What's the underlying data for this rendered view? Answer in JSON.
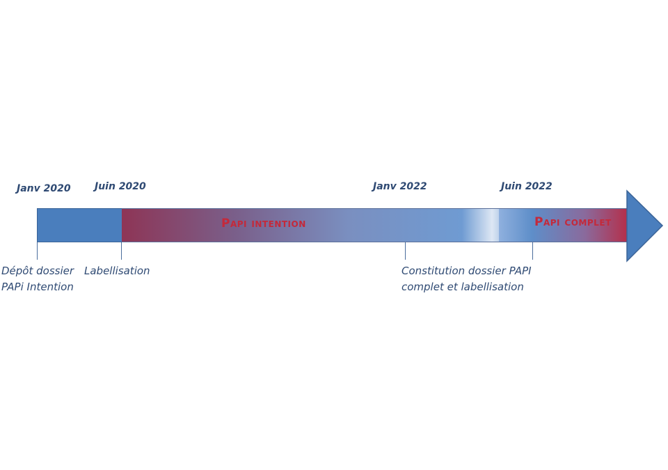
{
  "dates": [
    "Janv 2020",
    "Juin 2020",
    "Janv 2022",
    "Juin 2022"
  ],
  "captions": [
    {
      "line1": "Dépôt dossier",
      "line2": "PAPi Intention"
    },
    {
      "line1": "Labellisation",
      "line2": ""
    },
    {
      "line1": "Constitution dossier PAPI",
      "line2": "complet et labellisation"
    }
  ],
  "phases": {
    "intention": "Papi intention",
    "complet": "Papi complet"
  },
  "colors": {
    "blue": "#4a7ebd",
    "red": "#c4293a",
    "text": "#2f4a73"
  }
}
